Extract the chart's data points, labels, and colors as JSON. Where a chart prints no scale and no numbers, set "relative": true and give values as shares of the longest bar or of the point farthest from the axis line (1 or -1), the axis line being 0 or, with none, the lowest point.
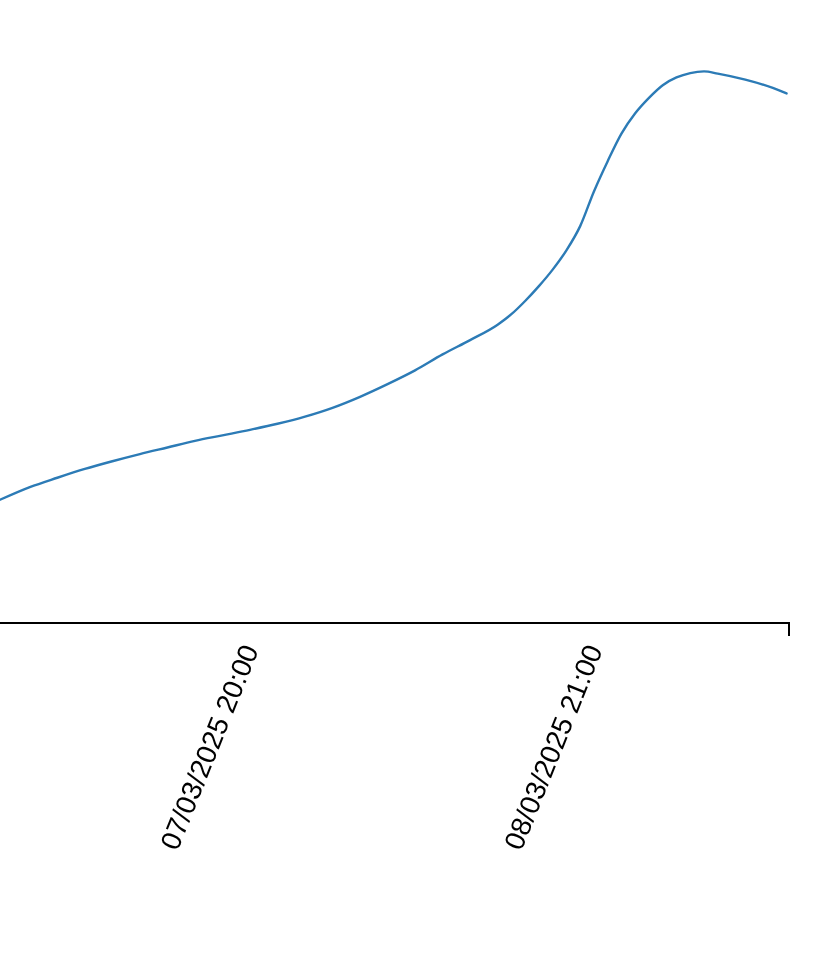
{
  "chart_data": {
    "type": "line",
    "relative": true,
    "color": "#2c7bb6",
    "x": [
      "2025-03-07T01:50",
      "2025-03-07T04:00",
      "2025-03-07T06:00",
      "2025-03-07T08:00",
      "2025-03-07T10:00",
      "2025-03-07T12:00",
      "2025-03-07T14:00",
      "2025-03-07T16:00",
      "2025-03-07T18:00",
      "2025-03-07T20:00",
      "2025-03-07T22:00",
      "2025-03-08T00:00",
      "2025-03-08T02:00",
      "2025-03-08T04:00",
      "2025-03-08T06:00",
      "2025-03-08T08:00",
      "2025-03-08T10:00",
      "2025-03-08T12:00",
      "2025-03-08T14:00",
      "2025-03-08T15:00",
      "2025-03-08T16:00",
      "2025-03-08T17:00",
      "2025-03-08T18:00",
      "2025-03-08T19:00",
      "2025-03-08T20:00",
      "2025-03-08T21:00",
      "2025-03-08T22:00",
      "2025-03-08T23:00",
      "2025-03-09T00:00",
      "2025-03-09T01:00",
      "2025-03-09T02:00",
      "2025-03-09T03:00",
      "2025-03-09T04:00",
      "2025-03-09T05:00",
      "2025-03-09T06:00",
      "2025-03-09T08:00",
      "2025-03-09T10:00",
      "2025-03-09T11:00"
    ],
    "values": [
      0.222,
      0.245,
      0.262,
      0.278,
      0.292,
      0.305,
      0.317,
      0.329,
      0.339,
      0.349,
      0.36,
      0.373,
      0.389,
      0.409,
      0.432,
      0.457,
      0.486,
      0.512,
      0.54,
      0.559,
      0.583,
      0.61,
      0.64,
      0.675,
      0.719,
      0.782,
      0.837,
      0.887,
      0.924,
      0.952,
      0.975,
      0.989,
      0.997,
      1.0,
      0.996,
      0.985,
      0.97,
      0.96
    ],
    "xlim": [
      "2025-03-07T01:50",
      "2025-03-09T11:15"
    ],
    "xticks": [
      {
        "value": "2025-03-07T20:00",
        "label": "07/03/2025 20:00"
      },
      {
        "value": "2025-03-08T21:00",
        "label": "08/03/2025 21:00"
      }
    ]
  }
}
